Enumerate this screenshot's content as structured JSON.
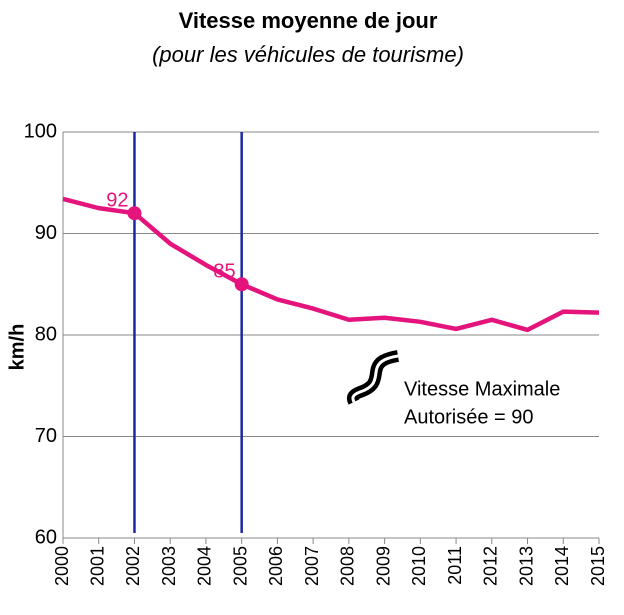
{
  "chart_data": {
    "type": "line",
    "title": "Vitesse moyenne de jour",
    "subtitle": "(pour les véhicules de tourisme)",
    "y_label": "km/h",
    "x": [
      2000,
      2001,
      2002,
      2003,
      2004,
      2005,
      2006,
      2007,
      2008,
      2009,
      2010,
      2011,
      2012,
      2013,
      2014,
      2015
    ],
    "series": [
      {
        "color": "#e4147c",
        "values": [
          93.4,
          92.5,
          92,
          89.0,
          86.9,
          85,
          83.5,
          82.6,
          81.5,
          81.7,
          81.3,
          80.6,
          81.5,
          80.5,
          82.3,
          82.2
        ],
        "value_labels": [
          null,
          null,
          "92",
          null,
          null,
          "85",
          null,
          null,
          null,
          null,
          null,
          null,
          null,
          null,
          null,
          null
        ]
      }
    ],
    "xlim": [
      2000,
      2015
    ],
    "xticks": [
      2000,
      2001,
      2002,
      2003,
      2004,
      2005,
      2006,
      2007,
      2008,
      2009,
      2010,
      2011,
      2012,
      2013,
      2014,
      2015
    ],
    "ylim": [
      60,
      100
    ],
    "yticks": [
      60,
      70,
      80,
      90,
      100
    ],
    "grid": true,
    "vlines": {
      "color": "#1a2aa0",
      "x": [
        2002,
        2005
      ]
    },
    "annotation": [
      "Vitesse Maximale",
      "Autorisée = 90"
    ]
  }
}
